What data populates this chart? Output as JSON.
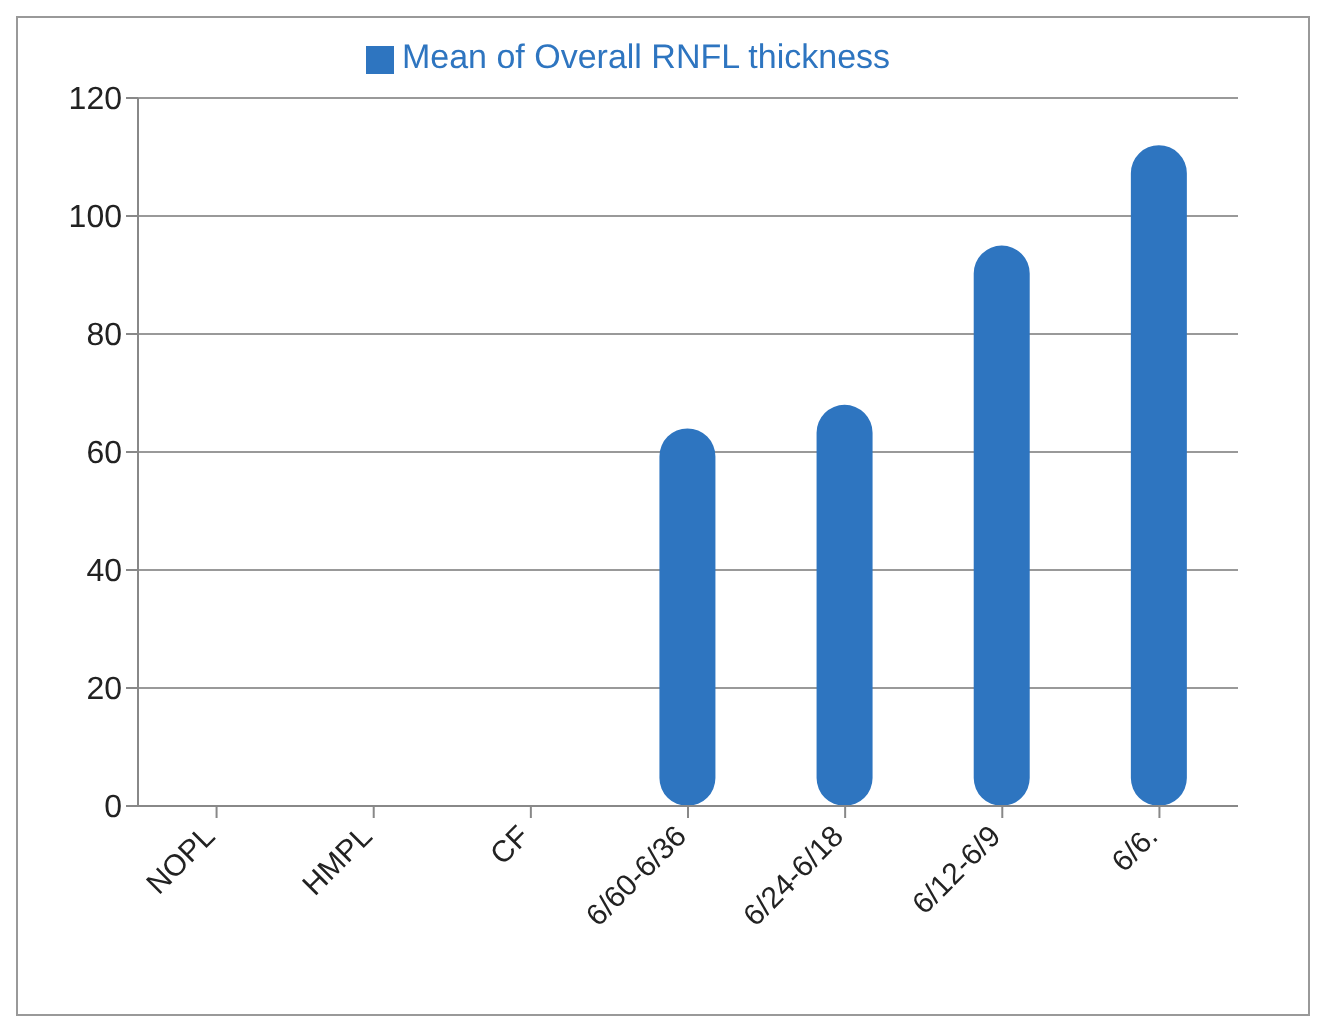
{
  "chart_data": {
    "type": "bar",
    "categories": [
      "NOPL",
      "HMPL",
      "CF",
      "6/60-6/36",
      "6/24-6/18",
      "6/12-6/9",
      "6/6."
    ],
    "series": [
      {
        "name": "Mean of Overall RNFL thickness",
        "color": "#2e75c0",
        "values": [
          0,
          0,
          0,
          64,
          68,
          95,
          112
        ]
      }
    ],
    "ylim": [
      0,
      120
    ],
    "yticks": [
      0,
      20,
      40,
      60,
      80,
      100,
      120
    ],
    "grid": "y",
    "legend": "top"
  }
}
